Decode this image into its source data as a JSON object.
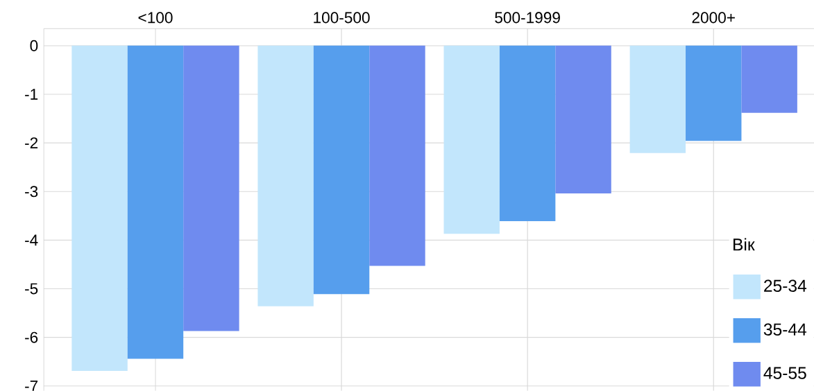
{
  "chart_data": {
    "type": "bar",
    "legend_title": "Вік",
    "categories": [
      "<100",
      "100-500",
      "500-1999",
      "2000+"
    ],
    "series": [
      {
        "name": "25-34",
        "color": "#c2e6fc",
        "values": [
          -6.69,
          -5.36,
          -3.87,
          -2.21
        ]
      },
      {
        "name": "35-44",
        "color": "#569eed",
        "values": [
          -6.44,
          -5.11,
          -3.61,
          -1.96
        ]
      },
      {
        "name": "45-55",
        "color": "#6f8bef",
        "values": [
          -5.87,
          -4.53,
          -3.04,
          -1.38
        ]
      }
    ],
    "ylim": [
      -7.1,
      0.35
    ],
    "yticks": [
      0,
      -1,
      -2,
      -3,
      -4,
      -5,
      -6,
      -7
    ],
    "grid": true,
    "legend": "bottom right"
  }
}
